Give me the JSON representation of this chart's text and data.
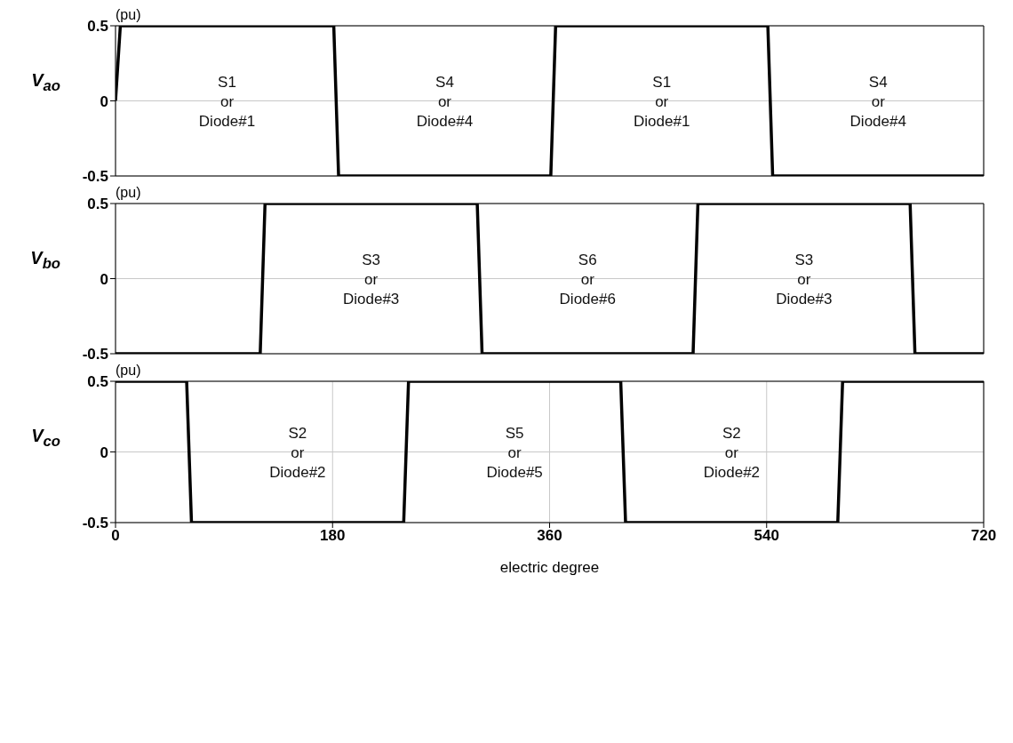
{
  "chart_data": [
    {
      "type": "line",
      "ylabel": "V$_{ao}$",
      "annotations": [
        "(pu)",
        "S1\nor\nDiode#1",
        "S4\nor\nDiode#4",
        "S1\nor\nDiode#1",
        "S4\nor\nDiode#4"
      ],
      "series": [
        {
          "color": "#000000",
          "x": [
            0,
            4,
            181,
            185,
            361,
            365,
            541,
            545,
            720
          ],
          "values": [
            0,
            0.5,
            0.5,
            -0.5,
            -0.5,
            0.5,
            0.5,
            -0.5,
            -0.5
          ]
        }
      ],
      "xlim": [
        0,
        720
      ],
      "xticks": [
        0,
        180,
        360,
        540,
        720
      ],
      "ylim": [
        -0.5,
        0.5
      ],
      "yticks": [
        -0.5,
        0,
        0.5
      ],
      "grid": true,
      "marker": "none",
      "line_style": "solid",
      "tick_labels": "y"
    },
    {
      "type": "line",
      "ylabel": "V$_{bo}$",
      "annotations": [
        "(pu)",
        "S3\nor\nDiode#3",
        "S6\nor\nDiode#6",
        "S3\nor\nDiode#3"
      ],
      "series": [
        {
          "color": "#000000",
          "x": [
            0,
            120,
            124,
            300,
            304,
            479,
            483,
            659,
            663,
            720
          ],
          "values": [
            -0.5,
            -0.5,
            0.5,
            0.5,
            -0.5,
            -0.5,
            0.5,
            0.5,
            -0.5,
            -0.5
          ]
        }
      ],
      "xlim": [
        0,
        720
      ],
      "xticks": [
        0,
        180,
        360,
        540,
        720
      ],
      "ylim": [
        -0.5,
        0.5
      ],
      "yticks": [
        -0.5,
        0,
        0.5
      ],
      "grid": true,
      "marker": "none",
      "line_style": "solid",
      "tick_labels": "y"
    },
    {
      "type": "line",
      "ylabel": "V$_{co}$",
      "xlabel": "electric degree",
      "annotations": [
        "(pu)",
        "S2\nor\nDiode#2",
        "S5\nor\nDiode#5",
        "S2\nor\nDiode#2"
      ],
      "series": [
        {
          "color": "#000000",
          "x": [
            0,
            59,
            63,
            239,
            243,
            419,
            423,
            599,
            603,
            720
          ],
          "values": [
            0.5,
            0.5,
            -0.5,
            -0.5,
            0.5,
            0.5,
            -0.5,
            -0.5,
            0.5,
            0.5
          ]
        }
      ],
      "xlim": [
        0,
        720
      ],
      "xticks": [
        0,
        180,
        360,
        540,
        720
      ],
      "ylim": [
        -0.5,
        0.5
      ],
      "yticks": [
        -0.5,
        0,
        0.5
      ],
      "grid": true,
      "marker": "none",
      "line_style": "solid"
    }
  ]
}
